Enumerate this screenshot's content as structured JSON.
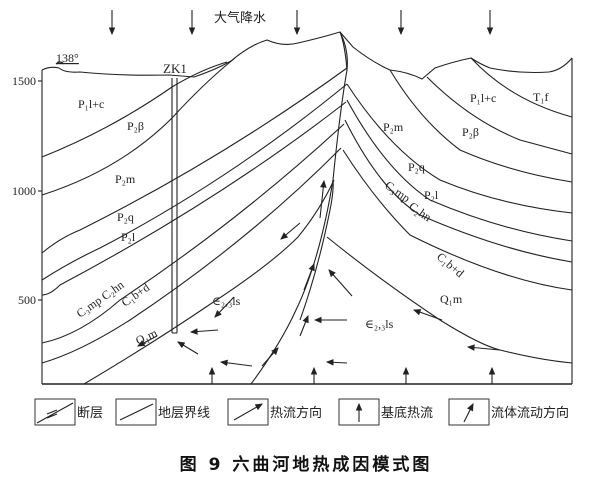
{
  "top_label": "大气降水",
  "elevation_mark": "138°",
  "borehole": "ZK1",
  "y_ticks": [
    "1500",
    "1000",
    "500"
  ],
  "strata_left": [
    "P₁l+c",
    "P₂β",
    "P₂m",
    "P₂q",
    "P₂l",
    "C₃mp  C₂hn",
    "C₁b+d",
    "Q₁m",
    "∈₂,₃ls"
  ],
  "strata_right": [
    "P₂m",
    "P₁l+c",
    "T₁f",
    "P₂β",
    "P₂q",
    "C₃mp",
    "P₂l",
    "C₂hn",
    "C₁b+d",
    "Q₁m",
    "∈₂,₃ls"
  ],
  "legend": [
    {
      "icon": "fault-icon",
      "label": "断层"
    },
    {
      "icon": "stratum-boundary-icon",
      "label": "地层界线"
    },
    {
      "icon": "heat-flow-direction-icon",
      "label": "热流方向"
    },
    {
      "icon": "basement-heat-flow-icon",
      "label": "基底热流"
    },
    {
      "icon": "fluid-flow-direction-icon",
      "label": "流体流动方向"
    }
  ],
  "caption": "图 9   六曲河地热成因模式图"
}
